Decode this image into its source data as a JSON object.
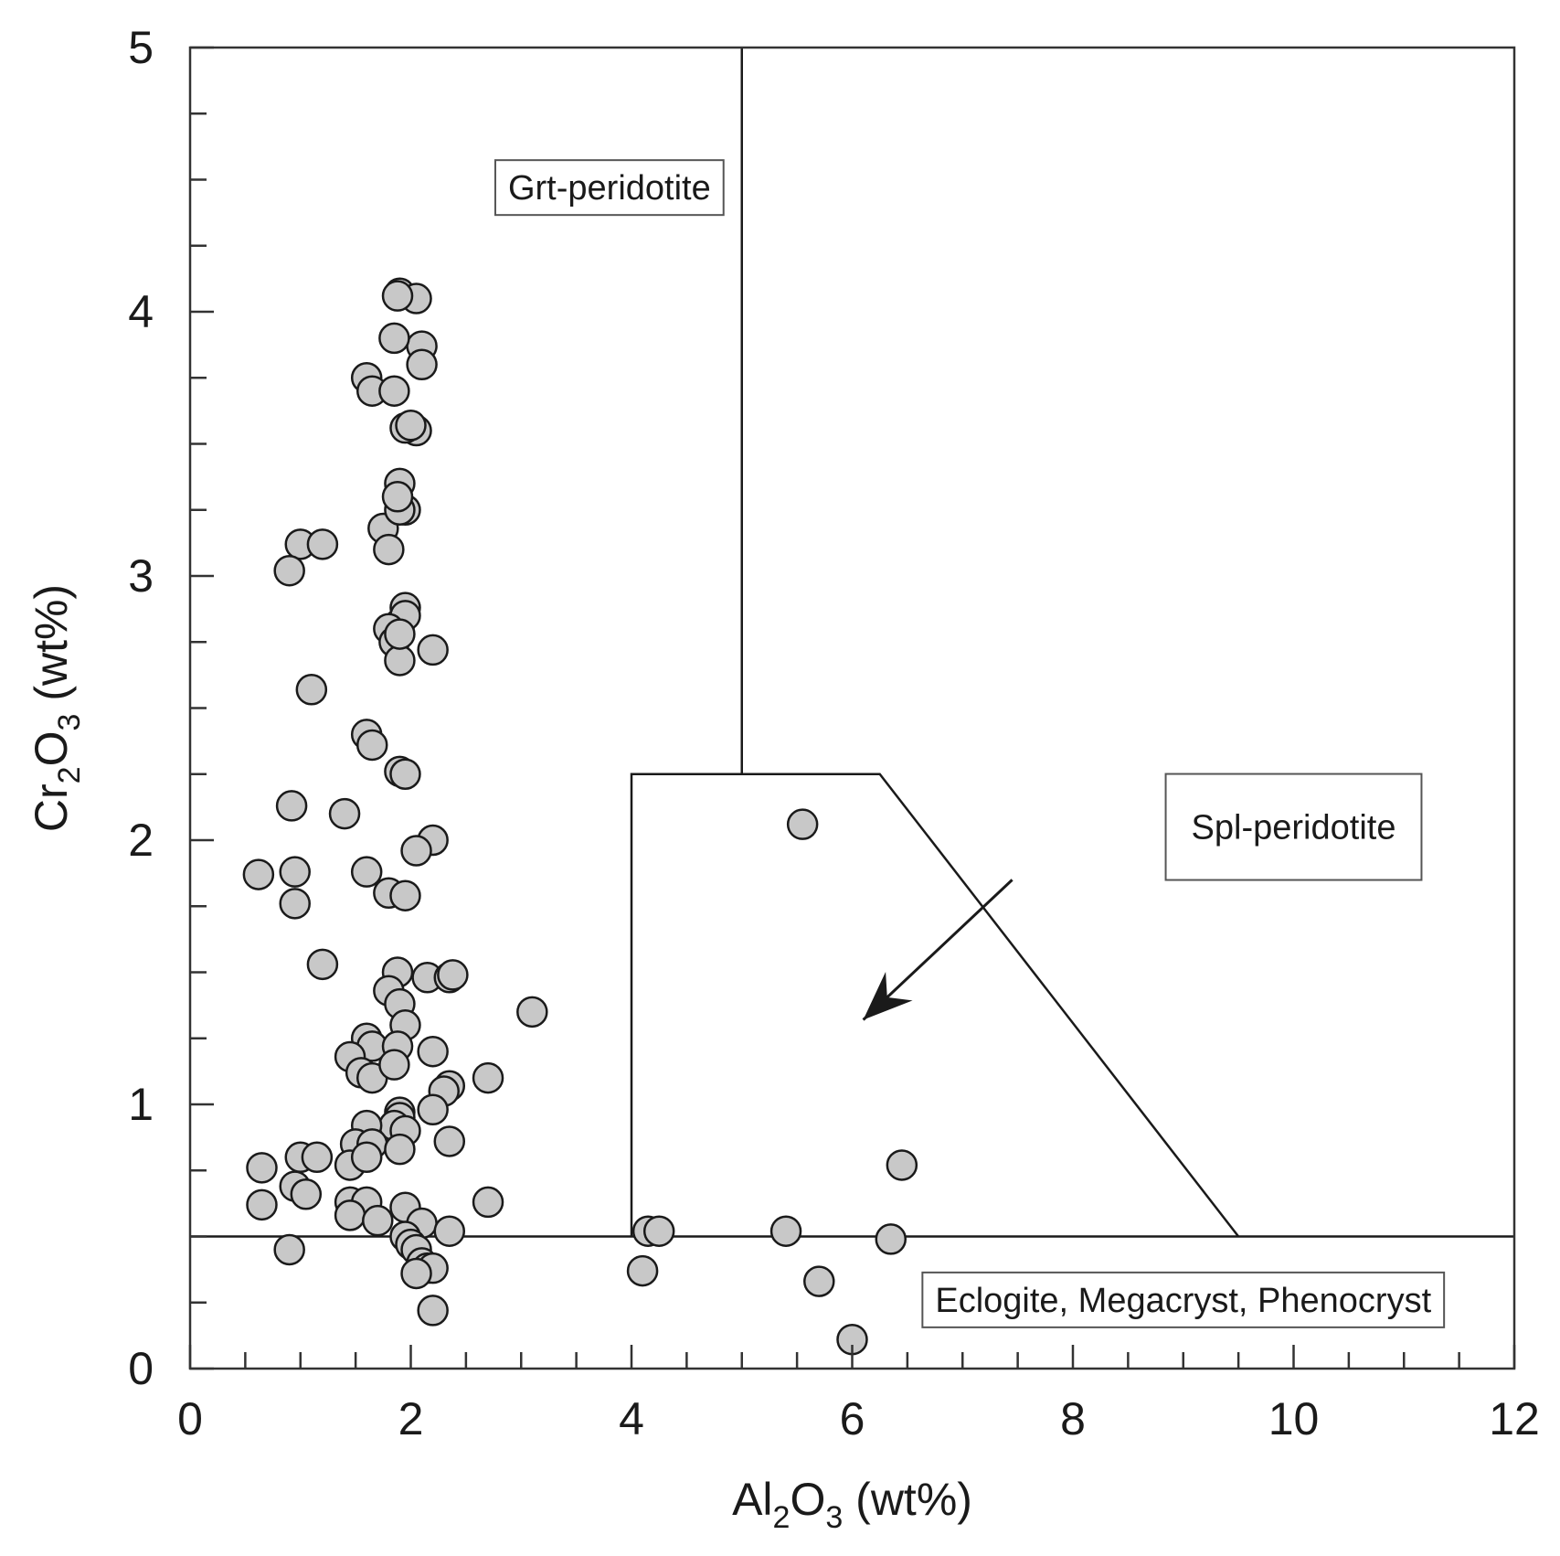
{
  "chart_data": {
    "type": "scatter",
    "title": "",
    "xlabel": {
      "pre": "Al",
      "sub1": "2",
      "mid": "O",
      "sub2": "3",
      "post": " (wt%)"
    },
    "ylabel": {
      "pre": "Cr",
      "sub1": "2",
      "mid": "O",
      "sub2": "3",
      "post": " (wt%)"
    },
    "xlim": [
      0,
      12
    ],
    "ylim": [
      0,
      5
    ],
    "x_ticks": [
      0,
      2,
      4,
      6,
      8,
      10,
      12
    ],
    "y_ticks": [
      0,
      1,
      2,
      3,
      4,
      5
    ],
    "x_minor_step": 0.5,
    "y_minor_step": 0.25,
    "grid": false,
    "regions": [
      {
        "name": "Grt-peridotite",
        "label": "Grt-peridotite",
        "anchor": [
          3.8,
          4.47
        ]
      },
      {
        "name": "Spl-peridotite",
        "label": "Spl-peridotite",
        "anchor": [
          10.0,
          2.05
        ]
      },
      {
        "name": "Eclogite, Megacryst, Phenocryst",
        "label": "Eclogite, Megacryst, Phenocryst",
        "anchor": [
          9.0,
          0.26
        ]
      }
    ],
    "boundaries": [
      {
        "name": "horizontal-0.5",
        "points": [
          [
            0,
            0.5
          ],
          [
            12,
            0.5
          ]
        ]
      },
      {
        "name": "vertical-5",
        "points": [
          [
            5,
            5
          ],
          [
            5,
            2.25
          ]
        ]
      },
      {
        "name": "spinel-field",
        "points": [
          [
            4,
            0.5
          ],
          [
            4,
            2.25
          ],
          [
            6.25,
            2.25
          ],
          [
            9.5,
            0.5
          ]
        ]
      }
    ],
    "arrow": {
      "from": [
        7.45,
        1.85
      ],
      "to": [
        6.1,
        1.32
      ]
    },
    "series": [
      {
        "name": "samples",
        "points": [
          [
            1.9,
            4.07
          ],
          [
            2.05,
            4.05
          ],
          [
            1.88,
            4.06
          ],
          [
            2.1,
            3.87
          ],
          [
            2.1,
            3.8
          ],
          [
            1.85,
            3.9
          ],
          [
            1.6,
            3.75
          ],
          [
            1.65,
            3.7
          ],
          [
            1.85,
            3.7
          ],
          [
            2.05,
            3.55
          ],
          [
            1.95,
            3.56
          ],
          [
            2.0,
            3.57
          ],
          [
            1.9,
            3.35
          ],
          [
            1.95,
            3.25
          ],
          [
            1.75,
            3.18
          ],
          [
            1.9,
            3.25
          ],
          [
            1.88,
            3.3
          ],
          [
            1.0,
            3.12
          ],
          [
            0.9,
            3.02
          ],
          [
            1.2,
            3.12
          ],
          [
            1.8,
            3.1
          ],
          [
            1.95,
            2.88
          ],
          [
            1.85,
            2.8
          ],
          [
            1.9,
            2.82
          ],
          [
            1.95,
            2.85
          ],
          [
            1.8,
            2.8
          ],
          [
            1.85,
            2.75
          ],
          [
            2.2,
            2.72
          ],
          [
            1.9,
            2.68
          ],
          [
            1.9,
            2.78
          ],
          [
            1.1,
            2.57
          ],
          [
            1.6,
            2.4
          ],
          [
            1.65,
            2.36
          ],
          [
            1.9,
            2.26
          ],
          [
            1.95,
            2.25
          ],
          [
            0.92,
            2.13
          ],
          [
            1.4,
            2.1
          ],
          [
            2.2,
            2.0
          ],
          [
            2.05,
            1.96
          ],
          [
            0.62,
            1.87
          ],
          [
            0.95,
            1.88
          ],
          [
            1.6,
            1.88
          ],
          [
            0.95,
            1.76
          ],
          [
            1.8,
            1.8
          ],
          [
            1.95,
            1.79
          ],
          [
            1.2,
            1.53
          ],
          [
            1.88,
            1.5
          ],
          [
            2.15,
            1.48
          ],
          [
            2.35,
            1.48
          ],
          [
            2.38,
            1.49
          ],
          [
            1.8,
            1.43
          ],
          [
            1.9,
            1.38
          ],
          [
            3.1,
            1.35
          ],
          [
            1.95,
            1.3
          ],
          [
            1.6,
            1.25
          ],
          [
            1.65,
            1.22
          ],
          [
            1.45,
            1.18
          ],
          [
            1.88,
            1.22
          ],
          [
            1.55,
            1.12
          ],
          [
            1.65,
            1.1
          ],
          [
            1.85,
            1.15
          ],
          [
            2.2,
            1.2
          ],
          [
            2.7,
            1.1
          ],
          [
            2.35,
            1.07
          ],
          [
            2.3,
            1.05
          ],
          [
            2.2,
            0.98
          ],
          [
            1.9,
            0.97
          ],
          [
            1.9,
            0.95
          ],
          [
            1.85,
            0.92
          ],
          [
            1.95,
            0.9
          ],
          [
            1.6,
            0.92
          ],
          [
            2.35,
            0.86
          ],
          [
            1.5,
            0.85
          ],
          [
            1.65,
            0.85
          ],
          [
            1.9,
            0.83
          ],
          [
            1.0,
            0.8
          ],
          [
            1.15,
            0.8
          ],
          [
            1.45,
            0.77
          ],
          [
            1.6,
            0.8
          ],
          [
            0.65,
            0.76
          ],
          [
            0.95,
            0.69
          ],
          [
            1.05,
            0.66
          ],
          [
            2.7,
            0.63
          ],
          [
            0.65,
            0.62
          ],
          [
            1.45,
            0.63
          ],
          [
            1.6,
            0.63
          ],
          [
            1.95,
            0.61
          ],
          [
            2.1,
            0.55
          ],
          [
            1.45,
            0.58
          ],
          [
            1.7,
            0.56
          ],
          [
            1.95,
            0.5
          ],
          [
            2.0,
            0.47
          ],
          [
            2.35,
            0.52
          ],
          [
            0.9,
            0.45
          ],
          [
            2.05,
            0.45
          ],
          [
            2.1,
            0.4
          ],
          [
            2.15,
            0.38
          ],
          [
            2.2,
            0.38
          ],
          [
            2.05,
            0.36
          ],
          [
            2.2,
            0.22
          ],
          [
            4.15,
            0.52
          ],
          [
            4.25,
            0.52
          ],
          [
            4.1,
            0.37
          ],
          [
            5.4,
            0.52
          ],
          [
            6.35,
            0.49
          ],
          [
            5.7,
            0.33
          ],
          [
            6.0,
            0.11
          ],
          [
            5.55,
            2.06
          ],
          [
            6.45,
            0.77
          ]
        ]
      }
    ]
  }
}
